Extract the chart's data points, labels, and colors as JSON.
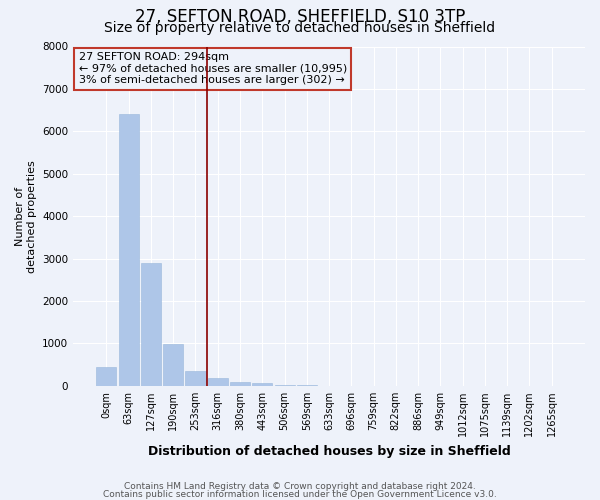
{
  "title1": "27, SEFTON ROAD, SHEFFIELD, S10 3TP",
  "title2": "Size of property relative to detached houses in Sheffield",
  "xlabel": "Distribution of detached houses by size in Sheffield",
  "ylabel": "Number of\ndetached properties",
  "categories": [
    "0sqm",
    "63sqm",
    "127sqm",
    "190sqm",
    "253sqm",
    "316sqm",
    "380sqm",
    "443sqm",
    "506sqm",
    "569sqm",
    "633sqm",
    "696sqm",
    "759sqm",
    "822sqm",
    "886sqm",
    "949sqm",
    "1012sqm",
    "1075sqm",
    "1139sqm",
    "1202sqm",
    "1265sqm"
  ],
  "values": [
    450,
    6400,
    2900,
    980,
    350,
    190,
    95,
    65,
    30,
    10,
    5,
    3,
    2,
    1,
    1,
    0,
    0,
    0,
    0,
    0,
    0
  ],
  "bar_color": "#aec6e8",
  "bar_edge_color": "#9ab8dc",
  "vline_color": "#8b0000",
  "vline_x": 4.5,
  "annotation_text": "27 SEFTON ROAD: 294sqm\n← 97% of detached houses are smaller (10,995)\n3% of semi-detached houses are larger (302) →",
  "annotation_box_color": "#c0392b",
  "ylim": [
    0,
    8000
  ],
  "yticks": [
    0,
    1000,
    2000,
    3000,
    4000,
    5000,
    6000,
    7000,
    8000
  ],
  "footer1": "Contains HM Land Registry data © Crown copyright and database right 2024.",
  "footer2": "Contains public sector information licensed under the Open Government Licence v3.0.",
  "bg_color": "#eef2fa",
  "grid_color": "#ffffff",
  "title1_fontsize": 12,
  "title2_fontsize": 10,
  "tick_fontsize": 7,
  "ylabel_fontsize": 8,
  "xlabel_fontsize": 9,
  "ann_fontsize": 8,
  "footer_fontsize": 6.5
}
